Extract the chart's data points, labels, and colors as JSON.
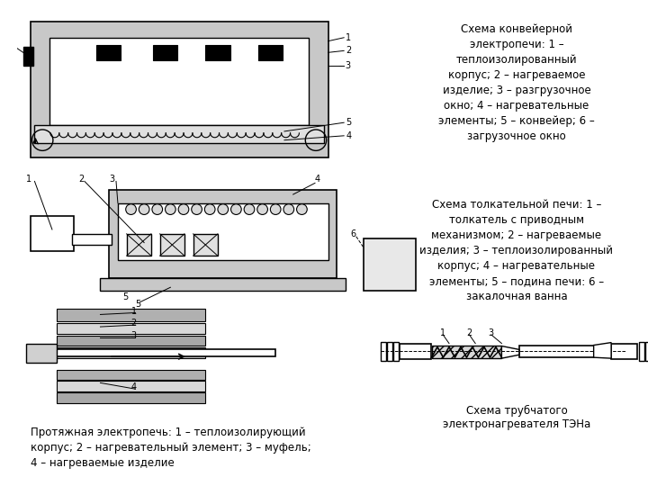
{
  "bg_color": "#ffffff",
  "line_color": "#000000",
  "gray_light": "#c8c8c8",
  "gray_mid": "#a0a0a0",
  "gray_dark": "#808080",
  "text_color": "#000000",
  "title1": "Схема конвейерной\nэлектропечи: 1 –\nтеплоизолированный\nкорпус; 2 – нагреваемое\nизделие; 3 – разгрузочное\nокно; 4 – нагревательные\nэлементы; 5 – конвейер; 6 –\nзагрузочное окно",
  "title2": "Схема толкательной печи: 1 –\nтолкатель с приводным\nмеханизмом; 2 – нагреваемые\nизделия; 3 – теплоизолированный\nкорпус; 4 – нагревательные\nэлементы; 5 – подина печи: 6 –\nзакалочная ванна",
  "title3": "Схема трубчатого\nэлектронагревателя ТЭНа",
  "caption": "Протяжная электропечь: 1 – теплоизолирующий\nкорпус; 2 – нагревательный элемент; 3 – муфель;\n4 – нагреваемые изделие"
}
